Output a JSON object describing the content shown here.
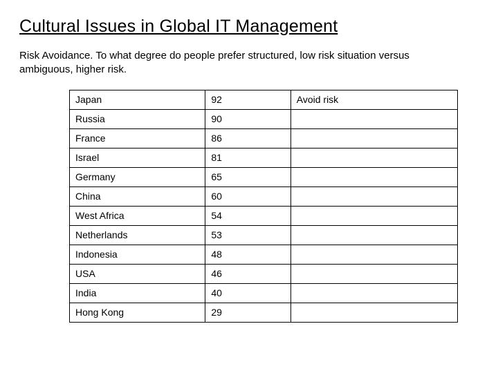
{
  "title": "Cultural Issues in Global IT Management",
  "subtitle": "Risk Avoidance. To what degree do people prefer structured, low risk situation versus ambiguous, higher risk.",
  "table": {
    "border_color": "#000000",
    "background_color": "#ffffff",
    "text_color": "#000000",
    "font_size_pt": 11,
    "columns": [
      "country",
      "score",
      "note"
    ],
    "col_widths_pct": [
      35,
      22,
      43
    ],
    "rows": [
      {
        "country": "Japan",
        "score": "92",
        "note": "Avoid risk"
      },
      {
        "country": "Russia",
        "score": "90",
        "note": ""
      },
      {
        "country": "France",
        "score": "86",
        "note": ""
      },
      {
        "country": "Israel",
        "score": "81",
        "note": ""
      },
      {
        "country": "Germany",
        "score": "65",
        "note": ""
      },
      {
        "country": "China",
        "score": "60",
        "note": ""
      },
      {
        "country": "West Africa",
        "score": "54",
        "note": ""
      },
      {
        "country": "Netherlands",
        "score": "53",
        "note": ""
      },
      {
        "country": "Indonesia",
        "score": "48",
        "note": ""
      },
      {
        "country": "USA",
        "score": "46",
        "note": ""
      },
      {
        "country": "India",
        "score": "40",
        "note": ""
      },
      {
        "country": "Hong Kong",
        "score": "29",
        "note": ""
      }
    ]
  }
}
